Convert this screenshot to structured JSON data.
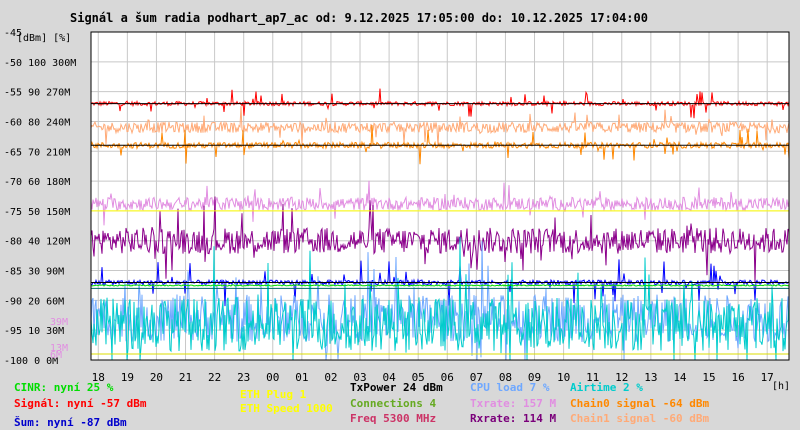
{
  "chart_data": {
    "type": "line",
    "title": "Signál a šum radia podhart_ap7_ac od: 9.12.2025 17:05:00 do: 10.12.2025 17:04:00",
    "ylabel_top": "[dBm] [%]",
    "xlabel": "[h]",
    "ylim_dbm": [
      -100,
      -45
    ],
    "yticks": [
      {
        "dbm": "-45",
        "pct": "",
        "rate": ""
      },
      {
        "dbm": "-50",
        "pct": "100",
        "rate": "300M"
      },
      {
        "dbm": "-55",
        "pct": "90",
        "rate": "270M"
      },
      {
        "dbm": "-60",
        "pct": "80",
        "rate": "240M"
      },
      {
        "dbm": "-65",
        "pct": "70",
        "rate": "210M"
      },
      {
        "dbm": "-70",
        "pct": "60",
        "rate": "180M"
      },
      {
        "dbm": "-75",
        "pct": "50",
        "rate": "150M"
      },
      {
        "dbm": "-80",
        "pct": "40",
        "rate": "120M"
      },
      {
        "dbm": "-85",
        "pct": "30",
        "rate": "90M"
      },
      {
        "dbm": "-90",
        "pct": "20",
        "rate": "60M"
      },
      {
        "dbm": "-95",
        "pct": "10",
        "rate": "30M"
      },
      {
        "dbm": "-100",
        "pct": "0",
        "rate": "0M"
      }
    ],
    "extra_axis_labels": [
      {
        "text": "39M",
        "dbm": -93.5,
        "color": "#e18ee1"
      },
      {
        "text": "13M",
        "dbm": -97.8,
        "color": "#e18ee1"
      },
      {
        "text": "6M",
        "dbm": -99.0,
        "color": "#e18ee1"
      }
    ],
    "xticks": [
      "18",
      "19",
      "20",
      "21",
      "22",
      "23",
      "00",
      "01",
      "02",
      "03",
      "04",
      "05",
      "06",
      "07",
      "08",
      "09",
      "10",
      "11",
      "12",
      "13",
      "14",
      "15",
      "16",
      "17"
    ],
    "grid": true,
    "series": [
      {
        "name": "Signál",
        "color": "#ff0000",
        "level": -57,
        "noise": 0.35,
        "spikes": 1.2
      },
      {
        "name": "Chain1 signal",
        "color": "#ffaa77",
        "level": -61,
        "noise": 0.9,
        "spikes": 1.5
      },
      {
        "name": "Chain0 signal",
        "color": "#ff8800",
        "level": -64,
        "noise": 0.5,
        "spikes": 1.5
      },
      {
        "name": "Txrate",
        "color": "#e18ee1",
        "level": -73.8,
        "noise": 1.1,
        "spikes": 1.5
      },
      {
        "name": "Rxrate",
        "color": "#8b008b",
        "level": -80,
        "noise": 2.2,
        "spikes": 3
      },
      {
        "name": "Šum",
        "color": "#0000ff",
        "level": -87,
        "noise": 0.4,
        "spikes": 2
      },
      {
        "name": "CPU load",
        "color": "#6fa8ff",
        "level": -93,
        "noise": 4,
        "spikes": 5
      },
      {
        "name": "Airtime",
        "color": "#00cccc",
        "level": -94,
        "noise": 4.5,
        "spikes": 6
      },
      {
        "name": "CINR",
        "color": "#00dd00",
        "level": -87.5,
        "noise": 0.1,
        "spikes": 0
      },
      {
        "name": "ETH Speed",
        "color": "#ffff00",
        "level": -75,
        "noise": 0,
        "spikes": 0
      }
    ],
    "hlines": [
      {
        "dbm": -57.0,
        "color": "#000000"
      },
      {
        "dbm": -64.0,
        "color": "#000000"
      },
      {
        "dbm": -87.0,
        "color": "#000000"
      },
      {
        "dbm": -88.0,
        "color": "#006666"
      },
      {
        "dbm": -99.0,
        "color": "#dddd00"
      }
    ]
  },
  "legend": [
    {
      "text": "CINR: nyní 25 %",
      "color": "#00dd00"
    },
    {
      "text": "Signál: nyní -57 dBm",
      "color": "#ff0000"
    },
    {
      "text": "Šum: nyní -87 dBm",
      "color": "#0000cc"
    },
    {
      "text": "ETH Plug 1",
      "color": "#ffff00"
    },
    {
      "text": "ETH Speed 1000",
      "color": "#ffff00"
    },
    {
      "text": "TxPower 24 dBm",
      "color": "#000000"
    },
    {
      "text": "Connections 4",
      "color": "#66aa22"
    },
    {
      "text": "Freq 5300 MHz",
      "color": "#cc3366"
    },
    {
      "text": "CPU load 7 %",
      "color": "#6fa8ff"
    },
    {
      "text": "Txrate: 157 M",
      "color": "#e18ee1"
    },
    {
      "text": "Rxrate: 114 M",
      "color": "#7a007a"
    },
    {
      "text": "Airtime 2 %",
      "color": "#00cccc"
    },
    {
      "text": "Chain0 signal -64 dBm",
      "color": "#ff8800"
    },
    {
      "text": "Chain1 signal -60 dBm",
      "color": "#ffaa77"
    }
  ]
}
